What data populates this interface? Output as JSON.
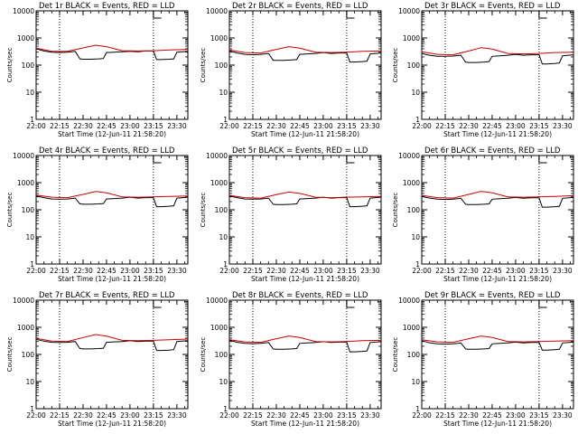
{
  "chart_data": [
    {
      "type": "line",
      "title": "Det 1r BLACK = Events, RED = LLD",
      "xlabel": "Start Time (12-Jun-11 21:58:20)",
      "ylabel": "Counts/sec",
      "yscale": "log",
      "ylim": [
        1,
        10000
      ],
      "y_ticks": [
        "1",
        "10",
        "100",
        "1000",
        "10000"
      ],
      "x_ticks": [
        "22:00",
        "22:15",
        "22:30",
        "22:45",
        "23:00",
        "23:15",
        "23:30"
      ],
      "series": [
        {
          "color": "#000000",
          "x": [
            "22:00",
            "22:05",
            "22:10",
            "22:15",
            "22:20",
            "22:25",
            "22:28",
            "22:30",
            "22:35",
            "22:40",
            "22:43",
            "22:45",
            "22:50",
            "22:55",
            "23:00",
            "23:05",
            "23:10",
            "23:15",
            "23:17",
            "23:20",
            "23:25",
            "23:28",
            "23:30",
            "23:37"
          ],
          "values": [
            400,
            330,
            300,
            290,
            300,
            320,
            170,
            165,
            165,
            170,
            175,
            290,
            300,
            310,
            320,
            310,
            330,
            330,
            160,
            160,
            165,
            170,
            300,
            320
          ]
        },
        {
          "color": "#cc0000",
          "x": [
            "22:00",
            "22:10",
            "22:20",
            "22:30",
            "22:38",
            "22:45",
            "22:55",
            "23:05",
            "23:15",
            "23:25",
            "23:37"
          ],
          "values": [
            420,
            320,
            320,
            430,
            540,
            480,
            340,
            330,
            340,
            360,
            380
          ]
        }
      ]
    },
    {
      "type": "line",
      "title": "Det 2r BLACK = Events, RED = LLD",
      "xlabel": "Start Time (12-Jun-11 21:58:20)",
      "ylabel": "Counts/sec",
      "yscale": "log",
      "ylim": [
        1,
        10000
      ],
      "y_ticks": [
        "1",
        "10",
        "100",
        "1000",
        "10000"
      ],
      "x_ticks": [
        "22:00",
        "22:15",
        "22:30",
        "22:45",
        "23:00",
        "23:15",
        "23:30"
      ],
      "series": [
        {
          "color": "#000000",
          "x": [
            "22:00",
            "22:05",
            "22:10",
            "22:15",
            "22:20",
            "22:25",
            "22:28",
            "22:30",
            "22:35",
            "22:40",
            "22:43",
            "22:45",
            "22:50",
            "22:55",
            "23:00",
            "23:05",
            "23:10",
            "23:15",
            "23:17",
            "23:20",
            "23:25",
            "23:28",
            "23:30",
            "23:37"
          ],
          "values": [
            330,
            280,
            250,
            240,
            250,
            270,
            150,
            150,
            150,
            155,
            160,
            250,
            260,
            270,
            290,
            270,
            280,
            280,
            130,
            130,
            135,
            140,
            260,
            280
          ]
        },
        {
          "color": "#cc0000",
          "x": [
            "22:00",
            "22:10",
            "22:20",
            "22:30",
            "22:38",
            "22:45",
            "22:55",
            "23:05",
            "23:15",
            "23:25",
            "23:37"
          ],
          "values": [
            360,
            290,
            280,
            380,
            480,
            420,
            300,
            290,
            300,
            320,
            330
          ]
        }
      ]
    },
    {
      "type": "line",
      "title": "Det 3r BLACK = Events, RED = LLD",
      "xlabel": "Start Time (12-Jun-11 21:58:20)",
      "ylabel": "Counts/sec",
      "yscale": "log",
      "ylim": [
        1,
        10000
      ],
      "y_ticks": [
        "1",
        "10",
        "100",
        "1000",
        "10000"
      ],
      "x_ticks": [
        "22:00",
        "22:15",
        "22:30",
        "22:45",
        "23:00",
        "23:15",
        "23:30"
      ],
      "series": [
        {
          "color": "#000000",
          "x": [
            "22:00",
            "22:05",
            "22:10",
            "22:15",
            "22:20",
            "22:25",
            "22:28",
            "22:30",
            "22:35",
            "22:40",
            "22:43",
            "22:45",
            "22:50",
            "22:55",
            "23:00",
            "23:05",
            "23:10",
            "23:15",
            "23:17",
            "23:20",
            "23:25",
            "23:28",
            "23:30",
            "23:37"
          ],
          "values": [
            270,
            230,
            210,
            210,
            215,
            230,
            130,
            125,
            125,
            130,
            135,
            210,
            220,
            230,
            250,
            230,
            240,
            240,
            110,
            110,
            115,
            120,
            220,
            240
          ]
        },
        {
          "color": "#cc0000",
          "x": [
            "22:00",
            "22:10",
            "22:20",
            "22:30",
            "22:38",
            "22:45",
            "22:55",
            "23:05",
            "23:15",
            "23:25",
            "23:37"
          ],
          "values": [
            310,
            250,
            240,
            330,
            440,
            390,
            270,
            260,
            270,
            290,
            300
          ]
        }
      ]
    },
    {
      "type": "line",
      "title": "Det 4r BLACK = Events, RED = LLD",
      "xlabel": "Start Time (12-Jun-11 21:58:20)",
      "ylabel": "Counts/sec",
      "yscale": "log",
      "ylim": [
        1,
        10000
      ],
      "y_ticks": [
        "1",
        "10",
        "100",
        "1000",
        "10000"
      ],
      "x_ticks": [
        "22:00",
        "22:15",
        "22:30",
        "22:45",
        "23:00",
        "23:15",
        "23:30"
      ],
      "series": [
        {
          "color": "#000000",
          "x": [
            "22:00",
            "22:05",
            "22:10",
            "22:15",
            "22:20",
            "22:25",
            "22:28",
            "22:30",
            "22:35",
            "22:40",
            "22:43",
            "22:45",
            "22:50",
            "22:55",
            "23:00",
            "23:05",
            "23:10",
            "23:15",
            "23:17",
            "23:20",
            "23:25",
            "23:28",
            "23:30",
            "23:37"
          ],
          "values": [
            320,
            280,
            250,
            245,
            250,
            270,
            165,
            160,
            160,
            165,
            170,
            250,
            260,
            270,
            290,
            270,
            280,
            280,
            130,
            130,
            135,
            140,
            270,
            290
          ]
        },
        {
          "color": "#cc0000",
          "x": [
            "22:00",
            "22:10",
            "22:20",
            "22:30",
            "22:38",
            "22:45",
            "22:55",
            "23:05",
            "23:15",
            "23:25",
            "23:37"
          ],
          "values": [
            350,
            290,
            280,
            370,
            470,
            420,
            300,
            290,
            300,
            310,
            320
          ]
        }
      ]
    },
    {
      "type": "line",
      "title": "Det 5r BLACK = Events, RED = LLD",
      "xlabel": "Start Time (12-Jun-11 21:58:20)",
      "ylabel": "Counts/sec",
      "yscale": "log",
      "ylim": [
        1,
        10000
      ],
      "y_ticks": [
        "1",
        "10",
        "100",
        "1000",
        "10000"
      ],
      "x_ticks": [
        "22:00",
        "22:15",
        "22:30",
        "22:45",
        "23:00",
        "23:15",
        "23:30"
      ],
      "series": [
        {
          "color": "#000000",
          "x": [
            "22:00",
            "22:05",
            "22:10",
            "22:15",
            "22:20",
            "22:25",
            "22:28",
            "22:30",
            "22:35",
            "22:40",
            "22:43",
            "22:45",
            "22:50",
            "22:55",
            "23:00",
            "23:05",
            "23:10",
            "23:15",
            "23:17",
            "23:20",
            "23:25",
            "23:28",
            "23:30",
            "23:37"
          ],
          "values": [
            320,
            280,
            250,
            245,
            250,
            270,
            160,
            155,
            155,
            160,
            165,
            250,
            260,
            270,
            290,
            270,
            280,
            280,
            130,
            130,
            135,
            140,
            270,
            290
          ]
        },
        {
          "color": "#cc0000",
          "x": [
            "22:00",
            "22:10",
            "22:20",
            "22:30",
            "22:38",
            "22:45",
            "22:55",
            "23:05",
            "23:15",
            "23:25",
            "23:37"
          ],
          "values": [
            340,
            280,
            270,
            360,
            450,
            400,
            290,
            280,
            290,
            300,
            310
          ]
        }
      ]
    },
    {
      "type": "line",
      "title": "Det 6r BLACK = Events, RED = LLD",
      "xlabel": "Start Time (12-Jun-11 21:58:20)",
      "ylabel": "Counts/sec",
      "yscale": "log",
      "ylim": [
        1,
        10000
      ],
      "y_ticks": [
        "1",
        "10",
        "100",
        "1000",
        "10000"
      ],
      "x_ticks": [
        "22:00",
        "22:15",
        "22:30",
        "22:45",
        "23:00",
        "23:15",
        "23:30"
      ],
      "series": [
        {
          "color": "#000000",
          "x": [
            "22:00",
            "22:05",
            "22:10",
            "22:15",
            "22:20",
            "22:25",
            "22:28",
            "22:30",
            "22:35",
            "22:40",
            "22:43",
            "22:45",
            "22:50",
            "22:55",
            "23:00",
            "23:05",
            "23:10",
            "23:15",
            "23:17",
            "23:20",
            "23:25",
            "23:28",
            "23:30",
            "23:37"
          ],
          "values": [
            310,
            270,
            245,
            240,
            245,
            265,
            160,
            155,
            155,
            160,
            165,
            245,
            255,
            265,
            285,
            265,
            275,
            275,
            125,
            125,
            130,
            135,
            265,
            285
          ]
        },
        {
          "color": "#cc0000",
          "x": [
            "22:00",
            "22:10",
            "22:20",
            "22:30",
            "22:38",
            "22:45",
            "22:55",
            "23:05",
            "23:15",
            "23:25",
            "23:37"
          ],
          "values": [
            340,
            280,
            270,
            370,
            480,
            420,
            300,
            290,
            300,
            310,
            330
          ]
        }
      ]
    },
    {
      "type": "line",
      "title": "Det 7r BLACK = Events, RED = LLD",
      "xlabel": "Start Time (12-Jun-11 21:58:20)",
      "ylabel": "Counts/sec",
      "yscale": "log",
      "ylim": [
        1,
        10000
      ],
      "y_ticks": [
        "1",
        "10",
        "100",
        "1000",
        "10000"
      ],
      "x_ticks": [
        "22:00",
        "22:15",
        "22:30",
        "22:45",
        "23:00",
        "23:15",
        "23:30"
      ],
      "series": [
        {
          "color": "#000000",
          "x": [
            "22:00",
            "22:05",
            "22:10",
            "22:15",
            "22:20",
            "22:25",
            "22:28",
            "22:30",
            "22:35",
            "22:40",
            "22:43",
            "22:45",
            "22:50",
            "22:55",
            "23:00",
            "23:05",
            "23:10",
            "23:15",
            "23:17",
            "23:20",
            "23:25",
            "23:28",
            "23:30",
            "23:37"
          ],
          "values": [
            360,
            310,
            280,
            275,
            280,
            300,
            165,
            160,
            160,
            165,
            170,
            280,
            290,
            300,
            320,
            300,
            310,
            310,
            140,
            140,
            145,
            150,
            300,
            320
          ]
        },
        {
          "color": "#cc0000",
          "x": [
            "22:00",
            "22:10",
            "22:20",
            "22:30",
            "22:38",
            "22:45",
            "22:55",
            "23:05",
            "23:15",
            "23:25",
            "23:37"
          ],
          "values": [
            390,
            310,
            300,
            420,
            540,
            470,
            330,
            320,
            330,
            350,
            370
          ]
        }
      ]
    },
    {
      "type": "line",
      "title": "Det 8r BLACK = Events, RED = LLD",
      "xlabel": "Start Time (12-Jun-11 21:58:20)",
      "ylabel": "Counts/sec",
      "yscale": "log",
      "ylim": [
        1,
        10000
      ],
      "y_ticks": [
        "1",
        "10",
        "100",
        "1000",
        "10000"
      ],
      "x_ticks": [
        "22:00",
        "22:15",
        "22:30",
        "22:45",
        "23:00",
        "23:15",
        "23:30"
      ],
      "series": [
        {
          "color": "#000000",
          "x": [
            "22:00",
            "22:05",
            "22:10",
            "22:15",
            "22:20",
            "22:25",
            "22:28",
            "22:30",
            "22:35",
            "22:40",
            "22:43",
            "22:45",
            "22:50",
            "22:55",
            "23:00",
            "23:05",
            "23:10",
            "23:15",
            "23:17",
            "23:20",
            "23:25",
            "23:28",
            "23:30",
            "23:37"
          ],
          "values": [
            330,
            280,
            255,
            250,
            255,
            275,
            160,
            155,
            155,
            160,
            165,
            255,
            265,
            275,
            295,
            275,
            285,
            285,
            125,
            125,
            130,
            135,
            275,
            295
          ]
        },
        {
          "color": "#cc0000",
          "x": [
            "22:00",
            "22:10",
            "22:20",
            "22:30",
            "22:38",
            "22:45",
            "22:55",
            "23:05",
            "23:15",
            "23:25",
            "23:37"
          ],
          "values": [
            350,
            290,
            280,
            380,
            480,
            420,
            300,
            290,
            300,
            320,
            330
          ]
        }
      ]
    },
    {
      "type": "line",
      "title": "Det 9r BLACK = Events, RED = LLD",
      "xlabel": "Start Time (12-Jun-11 21:58:20)",
      "ylabel": "Counts/sec",
      "yscale": "log",
      "ylim": [
        1,
        10000
      ],
      "y_ticks": [
        "1",
        "10",
        "100",
        "1000",
        "10000"
      ],
      "x_ticks": [
        "22:00",
        "22:15",
        "22:30",
        "22:45",
        "23:00",
        "23:15",
        "23:30"
      ],
      "series": [
        {
          "color": "#000000",
          "x": [
            "22:00",
            "22:05",
            "22:10",
            "22:15",
            "22:20",
            "22:25",
            "22:28",
            "22:30",
            "22:35",
            "22:40",
            "22:43",
            "22:45",
            "22:50",
            "22:55",
            "23:00",
            "23:05",
            "23:10",
            "23:15",
            "23:17",
            "23:20",
            "23:25",
            "23:28",
            "23:30",
            "23:37"
          ],
          "values": [
            320,
            270,
            245,
            240,
            245,
            265,
            160,
            155,
            155,
            160,
            165,
            245,
            255,
            265,
            285,
            265,
            275,
            275,
            145,
            145,
            150,
            155,
            265,
            285
          ]
        },
        {
          "color": "#cc0000",
          "x": [
            "22:00",
            "22:10",
            "22:20",
            "22:30",
            "22:38",
            "22:45",
            "22:55",
            "23:05",
            "23:15",
            "23:25",
            "23:37"
          ],
          "values": [
            350,
            290,
            280,
            380,
            480,
            420,
            300,
            290,
            300,
            310,
            320
          ]
        }
      ]
    }
  ],
  "markers": {
    "vertical_dotted_lines": [
      "22:15",
      "23:15"
    ],
    "bracket_times": [
      "23:15",
      "23:20"
    ]
  },
  "axis_range": {
    "x_start": "22:00",
    "x_end": "23:37"
  }
}
